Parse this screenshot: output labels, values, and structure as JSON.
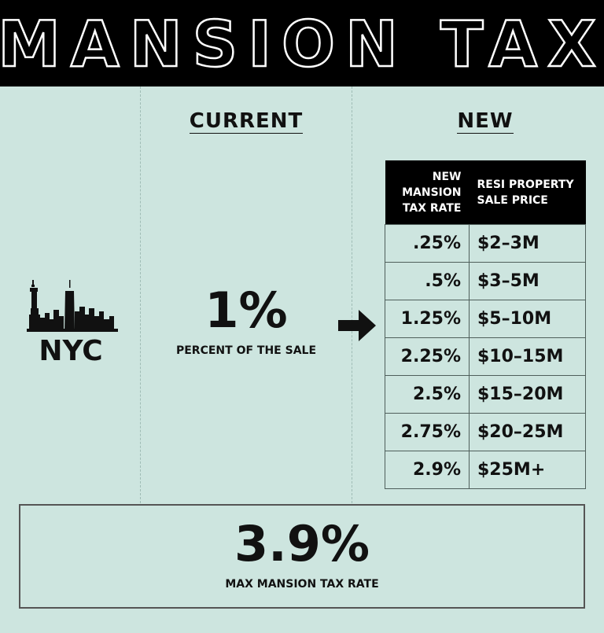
{
  "header": {
    "title": "MANSION TAX"
  },
  "columns": {
    "current_label": "CURRENT",
    "new_label": "NEW"
  },
  "city": {
    "name": "NYC",
    "icon": "nyc-skyline-icon"
  },
  "current": {
    "value": "1%",
    "caption": "PERCENT OF THE SALE"
  },
  "arrow": {
    "icon": "arrow-right-icon"
  },
  "rate_table": {
    "col_rate": "NEW MANSION TAX RATE",
    "col_price": "RESI PROPERTY SALE PRICE",
    "rows": [
      {
        "rate": ".25%",
        "price": "$2–3M"
      },
      {
        "rate": ".5%",
        "price": "$3–5M"
      },
      {
        "rate": "1.25%",
        "price": "$5–10M"
      },
      {
        "rate": "2.25%",
        "price": "$10–15M"
      },
      {
        "rate": "2.5%",
        "price": "$15–20M"
      },
      {
        "rate": "2.75%",
        "price": "$20–25M"
      },
      {
        "rate": "2.9%",
        "price": "$25M+"
      }
    ]
  },
  "max": {
    "value": "3.9%",
    "caption": "MAX MANSION TAX RATE"
  },
  "colors": {
    "background": "#cde5df",
    "header_bg": "#000000",
    "text": "#111111"
  }
}
